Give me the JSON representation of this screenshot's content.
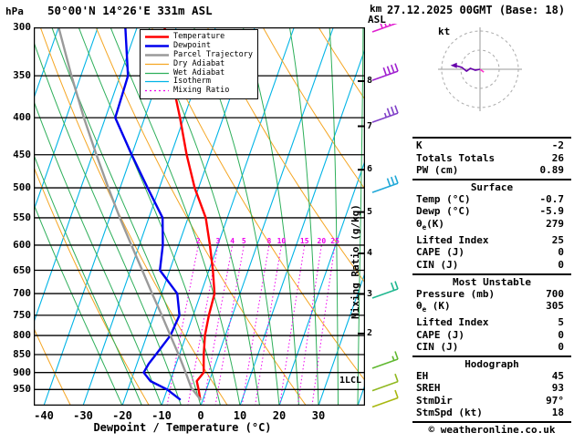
{
  "header": {
    "pressure_unit": "hPa",
    "station": "50°00'N 14°26'E 331m ASL",
    "altitude_unit": "km",
    "asl": "ASL",
    "datetime": "27.12.2025 00GMT (Base: 18)"
  },
  "chart_data": {
    "type": "skewt-log-p",
    "pressure_axis": {
      "unit": "hPa",
      "min": 300,
      "max": 1000,
      "ticks": [
        300,
        350,
        400,
        450,
        500,
        550,
        600,
        650,
        700,
        750,
        800,
        850,
        900,
        950
      ]
    },
    "temp_axis": {
      "label": "Dewpoint / Temperature (°C)",
      "ticks": [
        -40,
        -30,
        -20,
        -10,
        0,
        10,
        20,
        30
      ]
    },
    "km_axis": {
      "values": [
        2,
        3,
        4,
        5,
        6,
        7,
        8
      ],
      "pressures": [
        795,
        701,
        616,
        540,
        472,
        411,
        356
      ]
    },
    "lcl_label": "1LCL",
    "mixing_ratio": {
      "label": "Mixing Ratio (g/kg)",
      "values": [
        2,
        3,
        4,
        5,
        8,
        10,
        15,
        20,
        25
      ],
      "label_pressure": 600,
      "color": "#ee00ee"
    },
    "background": {
      "isotherm": {
        "color": "#00b4e6",
        "step": 10
      },
      "dry_adiabat": {
        "color": "#f5a623",
        "step": 20
      },
      "wet_adiabat": {
        "color": "#2eaf5a",
        "step": 5
      },
      "isobar_color": "#000000"
    },
    "legend": [
      {
        "label": "Temperature",
        "color": "#ff0000",
        "width": 2.5,
        "dash": ""
      },
      {
        "label": "Dewpoint",
        "color": "#0000ee",
        "width": 2.5,
        "dash": ""
      },
      {
        "label": "Parcel Trajectory",
        "color": "#9a9a9a",
        "width": 2.5,
        "dash": ""
      },
      {
        "label": "Dry Adiabat",
        "color": "#f5a623",
        "width": 1.2,
        "dash": ""
      },
      {
        "label": "Wet Adiabat",
        "color": "#2eaf5a",
        "width": 1.2,
        "dash": ""
      },
      {
        "label": "Isotherm",
        "color": "#00b4e6",
        "width": 1.2,
        "dash": ""
      },
      {
        "label": "Mixing Ratio",
        "color": "#ee00ee",
        "width": 1.2,
        "dash": "2,3"
      }
    ],
    "series": [
      {
        "name": "Temperature",
        "color": "#ff0000",
        "width": 2.4,
        "points": [
          [
            980,
            -0.7
          ],
          [
            950,
            -2.0
          ],
          [
            925,
            -3.2
          ],
          [
            900,
            -2.2
          ],
          [
            875,
            -3.0
          ],
          [
            850,
            -3.8
          ],
          [
            800,
            -5.2
          ],
          [
            750,
            -6.0
          ],
          [
            700,
            -6.5
          ],
          [
            650,
            -9.0
          ],
          [
            600,
            -12.0
          ],
          [
            550,
            -15.5
          ],
          [
            500,
            -21.0
          ],
          [
            450,
            -26.0
          ],
          [
            400,
            -31.0
          ],
          [
            350,
            -37.0
          ],
          [
            300,
            -43.0
          ]
        ]
      },
      {
        "name": "Dewpoint",
        "color": "#0000ee",
        "width": 2.4,
        "points": [
          [
            980,
            -5.9
          ],
          [
            950,
            -10.0
          ],
          [
            925,
            -15.0
          ],
          [
            900,
            -17.5
          ],
          [
            875,
            -17.0
          ],
          [
            850,
            -16.0
          ],
          [
            800,
            -14.0
          ],
          [
            750,
            -13.5
          ],
          [
            700,
            -16.0
          ],
          [
            650,
            -22.5
          ],
          [
            600,
            -24.0
          ],
          [
            550,
            -26.5
          ],
          [
            500,
            -33.0
          ],
          [
            450,
            -40.0
          ],
          [
            400,
            -47.5
          ],
          [
            350,
            -48.0
          ],
          [
            300,
            -53.0
          ]
        ]
      },
      {
        "name": "Parcel Trajectory",
        "color": "#9a9a9a",
        "width": 2.4,
        "points": [
          [
            980,
            -0.7
          ],
          [
            945,
            -4.0
          ],
          [
            900,
            -6.8
          ],
          [
            850,
            -10.2
          ],
          [
            800,
            -14.0
          ],
          [
            750,
            -18.0
          ],
          [
            700,
            -22.4
          ],
          [
            650,
            -27.0
          ],
          [
            600,
            -32.0
          ],
          [
            550,
            -37.4
          ],
          [
            500,
            -43.0
          ],
          [
            450,
            -49.0
          ],
          [
            400,
            -55.5
          ],
          [
            350,
            -62.4
          ],
          [
            300,
            -70.0
          ]
        ]
      }
    ]
  },
  "winds": {
    "unit": "kt",
    "barbs": [
      {
        "p": 300,
        "speed": 50,
        "color": "#e020d0"
      },
      {
        "p": 350,
        "speed": 40,
        "color": "#a020d0"
      },
      {
        "p": 400,
        "speed": 35,
        "color": "#8040c8"
      },
      {
        "p": 500,
        "speed": 30,
        "color": "#20a8d8"
      },
      {
        "p": 700,
        "speed": 20,
        "color": "#20b890"
      },
      {
        "p": 875,
        "speed": 15,
        "color": "#60b830"
      },
      {
        "p": 940,
        "speed": 10,
        "color": "#90b820"
      },
      {
        "p": 990,
        "speed": 10,
        "color": "#a8b810"
      }
    ]
  },
  "hodograph": {
    "unit": "kt",
    "rings": [
      20,
      40
    ],
    "trace": [
      [
        0,
        0
      ],
      [
        -5,
        -1
      ],
      [
        -10,
        1
      ],
      [
        -14,
        -2
      ],
      [
        -19,
        2
      ],
      [
        -26,
        4
      ]
    ],
    "trace2": [
      [
        0,
        0
      ],
      [
        4,
        -3
      ]
    ]
  },
  "indices": {
    "sections": [
      {
        "title": "",
        "rows": [
          [
            "K",
            "-2"
          ],
          [
            "Totals Totals",
            "26"
          ],
          [
            "PW (cm)",
            "0.89"
          ]
        ]
      },
      {
        "title": "Surface",
        "rows": [
          [
            "Temp (°C)",
            "-0.7"
          ],
          [
            "Dewp (°C)",
            "-5.9"
          ],
          [
            "θe(K)",
            "279"
          ],
          [
            "Lifted Index",
            "25"
          ],
          [
            "CAPE (J)",
            "0"
          ],
          [
            "CIN (J)",
            "0"
          ]
        ]
      },
      {
        "title": "Most Unstable",
        "rows": [
          [
            "Pressure (mb)",
            "700"
          ],
          [
            "θe (K)",
            "305"
          ],
          [
            "Lifted Index",
            "5"
          ],
          [
            "CAPE (J)",
            "0"
          ],
          [
            "CIN (J)",
            "0"
          ]
        ]
      },
      {
        "title": "Hodograph",
        "rows": [
          [
            "EH",
            "45"
          ],
          [
            "SREH",
            "93"
          ],
          [
            "StmDir",
            "97°"
          ],
          [
            "StmSpd (kt)",
            "18"
          ]
        ]
      }
    ]
  },
  "footer": {
    "copyright": "© weatheronline.co.uk"
  }
}
